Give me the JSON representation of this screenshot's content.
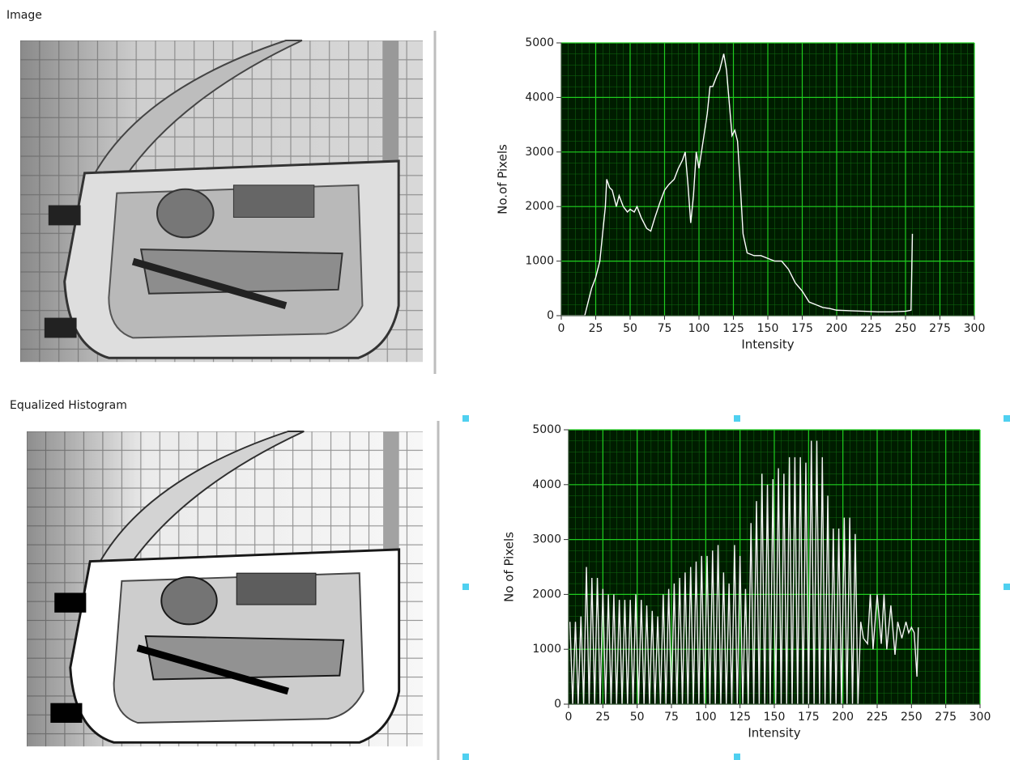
{
  "labels": {
    "image": "Image",
    "equalized": "Equalized Histogram"
  },
  "chart_data": [
    {
      "type": "line",
      "x_label": "Intensity",
      "y_label": "No.of Pixels",
      "xlim": [
        0,
        300
      ],
      "xticks": [
        0,
        25,
        50,
        75,
        100,
        125,
        150,
        175,
        200,
        225,
        250,
        275,
        300
      ],
      "ylim": [
        0,
        5000
      ],
      "yticks": [
        0,
        1000,
        2000,
        3000,
        4000,
        5000
      ],
      "grid": true,
      "background": "#001c00",
      "grid_color": "#1fcc1f",
      "minor_grid_color": "#0f6a0f",
      "color": "#ffffff",
      "x": [
        0,
        17,
        18,
        20,
        22,
        25,
        28,
        30,
        32,
        33,
        35,
        37,
        40,
        42,
        45,
        48,
        50,
        53,
        55,
        58,
        62,
        65,
        68,
        72,
        75,
        78,
        82,
        85,
        88,
        90,
        92,
        94,
        96,
        98,
        100,
        103,
        106,
        108,
        110,
        113,
        115,
        118,
        120,
        122,
        124,
        126,
        128,
        130,
        132,
        135,
        140,
        145,
        150,
        155,
        160,
        165,
        170,
        175,
        180,
        185,
        190,
        195,
        200,
        210,
        220,
        230,
        240,
        250,
        254,
        255
      ],
      "values": [
        0,
        0,
        100,
        300,
        500,
        700,
        1000,
        1500,
        2000,
        2500,
        2350,
        2300,
        2000,
        2200,
        2000,
        1900,
        1950,
        1900,
        2000,
        1800,
        1600,
        1550,
        1800,
        2100,
        2300,
        2400,
        2500,
        2700,
        2850,
        3000,
        2400,
        1700,
        2200,
        3000,
        2700,
        3200,
        3700,
        4200,
        4200,
        4400,
        4500,
        4800,
        4500,
        3900,
        3300,
        3400,
        3200,
        2400,
        1500,
        1150,
        1100,
        1100,
        1050,
        1000,
        1000,
        850,
        600,
        450,
        250,
        200,
        150,
        130,
        100,
        90,
        80,
        70,
        70,
        80,
        100,
        1500
      ]
    },
    {
      "type": "line",
      "x_label": "Intensity",
      "y_label": "No of Pixels",
      "xlim": [
        0,
        300
      ],
      "xticks": [
        0,
        25,
        50,
        75,
        100,
        125,
        150,
        175,
        200,
        225,
        250,
        275,
        300
      ],
      "ylim": [
        0,
        5000
      ],
      "yticks": [
        0,
        1000,
        2000,
        3000,
        4000,
        5000
      ],
      "grid": true,
      "background": "#001c00",
      "grid_color": "#1fcc1f",
      "minor_grid_color": "#0f6a0f",
      "color": "#f2f2f2",
      "x": [
        1,
        3,
        5,
        7,
        9,
        11,
        13,
        15,
        17,
        19,
        21,
        23,
        25,
        27,
        29,
        31,
        33,
        35,
        37,
        39,
        41,
        43,
        45,
        47,
        49,
        51,
        53,
        55,
        57,
        59,
        61,
        63,
        65,
        67,
        69,
        71,
        73,
        75,
        77,
        79,
        81,
        83,
        85,
        87,
        89,
        91,
        93,
        95,
        97,
        99,
        101,
        103,
        105,
        107,
        109,
        111,
        113,
        115,
        117,
        119,
        121,
        123,
        125,
        127,
        129,
        131,
        133,
        135,
        137,
        139,
        141,
        143,
        145,
        147,
        149,
        151,
        153,
        155,
        157,
        159,
        161,
        163,
        165,
        167,
        169,
        171,
        173,
        175,
        177,
        179,
        181,
        183,
        185,
        187,
        189,
        191,
        193,
        195,
        197,
        199,
        201,
        203,
        205,
        207,
        209,
        211,
        213,
        215,
        218,
        220,
        222,
        225,
        228,
        230,
        232,
        235,
        238,
        240,
        243,
        246,
        248,
        250,
        252,
        254,
        255
      ],
      "values": [
        1500,
        0,
        1500,
        0,
        1600,
        0,
        2500,
        0,
        2300,
        0,
        2300,
        0,
        2100,
        0,
        2000,
        0,
        2000,
        0,
        1900,
        0,
        1900,
        0,
        1900,
        0,
        2000,
        0,
        1900,
        0,
        1800,
        0,
        1700,
        0,
        1600,
        0,
        2000,
        0,
        2100,
        0,
        2200,
        0,
        2300,
        0,
        2400,
        0,
        2500,
        0,
        2600,
        0,
        2700,
        0,
        2700,
        0,
        2800,
        0,
        2900,
        0,
        2400,
        0,
        2200,
        0,
        2900,
        0,
        2700,
        0,
        2100,
        0,
        3300,
        0,
        3700,
        0,
        4200,
        0,
        4000,
        0,
        4100,
        0,
        4300,
        0,
        4200,
        0,
        4500,
        0,
        4500,
        0,
        4500,
        0,
        4400,
        0,
        4800,
        0,
        4800,
        0,
        4500,
        0,
        3800,
        0,
        3200,
        0,
        3200,
        0,
        3400,
        0,
        3400,
        0,
        3100,
        0,
        1500,
        1200,
        1100,
        2000,
        1000,
        2000,
        1100,
        2000,
        1000,
        1800,
        900,
        1500,
        1200,
        1500,
        1300,
        1400,
        1300,
        500,
        1400
      ]
    }
  ]
}
